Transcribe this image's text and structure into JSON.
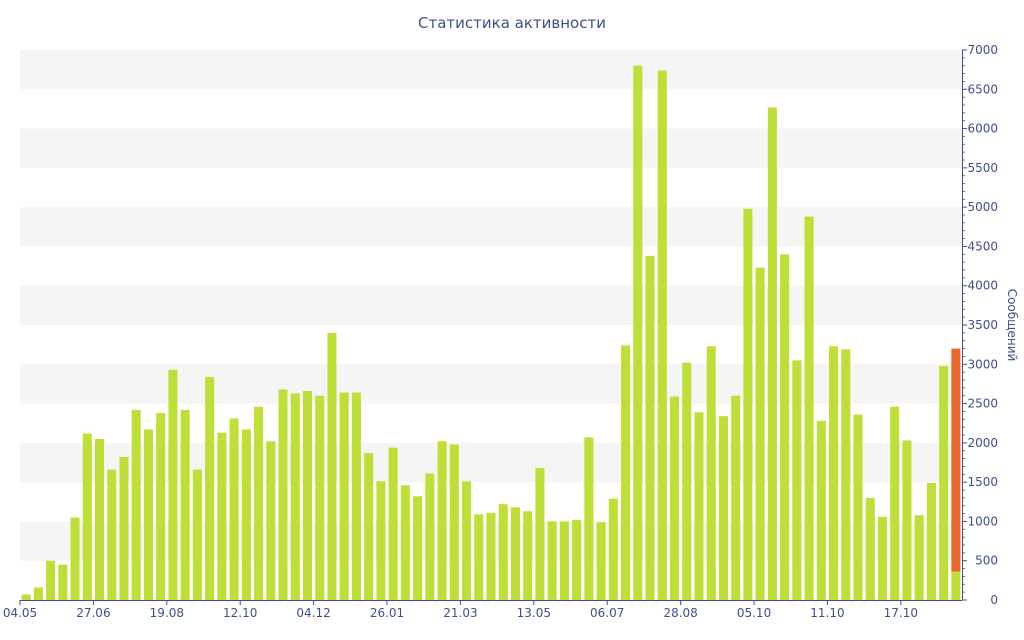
{
  "chart_data": {
    "type": "bar",
    "title": "Статистика активности",
    "xlabel": "",
    "ylabel": "Сообщений",
    "y_axis_position": "right",
    "ylim": [
      0,
      7000
    ],
    "y_ticks": [
      0,
      500,
      1000,
      1500,
      2000,
      2500,
      3000,
      3500,
      4000,
      4500,
      5000,
      5500,
      6000,
      6500,
      7000
    ],
    "x_tick_labels": [
      {
        "label": "04.05",
        "index": 0
      },
      {
        "label": "27.06",
        "index": 6
      },
      {
        "label": "19.08",
        "index": 12
      },
      {
        "label": "12.10",
        "index": 18
      },
      {
        "label": "04.12",
        "index": 24
      },
      {
        "label": "26.01",
        "index": 30
      },
      {
        "label": "21.03",
        "index": 36
      },
      {
        "label": "13.05",
        "index": 42
      },
      {
        "label": "06.07",
        "index": 48
      },
      {
        "label": "28.08",
        "index": 54
      },
      {
        "label": "05.10",
        "index": 60
      },
      {
        "label": "11.10",
        "index": 66
      },
      {
        "label": "17.10",
        "index": 72
      }
    ],
    "grid": "alternating horizontal bands",
    "colors": {
      "bar": "#bde039",
      "current": "#e8672b",
      "axis": "#3e4f8c",
      "band": "#f5f5f5"
    },
    "values": [
      70,
      160,
      500,
      450,
      1050,
      2120,
      2050,
      1660,
      1820,
      2420,
      2170,
      2380,
      2930,
      2420,
      1660,
      2840,
      2130,
      2310,
      2170,
      2460,
      2020,
      2680,
      2630,
      2660,
      2600,
      3400,
      2640,
      2640,
      1870,
      1510,
      1940,
      1460,
      1320,
      1610,
      2020,
      1980,
      1510,
      1090,
      1110,
      1220,
      1180,
      1130,
      1680,
      1000,
      1000,
      1020,
      2070,
      990,
      1290,
      3240,
      6800,
      4380,
      6740,
      2590,
      3020,
      2390,
      3230,
      2340,
      2600,
      4980,
      4230,
      6270,
      4400,
      3050,
      4880,
      2280,
      3230,
      3190,
      2360,
      1300,
      1060,
      2460,
      2030,
      1080,
      1490,
      2980,
      3200
    ],
    "highlight": {
      "index": 76,
      "color": "#e8672b",
      "base_color": "#bde039",
      "base_value": 360
    }
  }
}
